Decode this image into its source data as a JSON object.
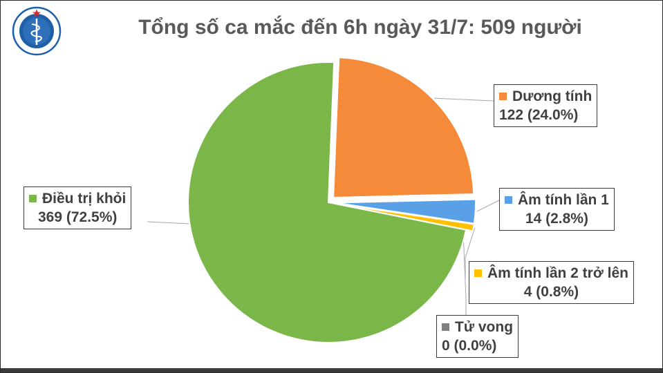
{
  "chart_data": {
    "type": "pie",
    "title": "Tổng số ca mắc đến 6h ngày 31/7: 509 người",
    "total": 509,
    "slices": [
      {
        "name": "Dương tính",
        "value": 122,
        "value_label": "122 (24.0%)",
        "percent": 24.0,
        "color": "#f58a3b",
        "exploded": true
      },
      {
        "name": "Âm tính lần 1",
        "value": 14,
        "value_label": "14 (2.8%)",
        "percent": 2.8,
        "color": "#5aa0e6",
        "exploded": true
      },
      {
        "name": "Âm tính lần 2 trở lên",
        "value": 4,
        "value_label": "4 (0.8%)",
        "percent": 0.8,
        "color": "#ffc000",
        "exploded": true
      },
      {
        "name": "Tử vong",
        "value": 0,
        "value_label": "0 (0.0%)",
        "percent": 0.0,
        "color": "#7f7f7f",
        "exploded": false
      },
      {
        "name": "Điều trị khỏi",
        "value": 369,
        "value_label": "369 (72.5%)",
        "percent": 72.5,
        "color": "#7ab648",
        "exploded": false
      }
    ]
  },
  "logo": {
    "top_text": "BỘ Y TẾ",
    "bottom_text": "MINISTRY OF HEALTH",
    "ring_color": "#1f5fa8"
  }
}
